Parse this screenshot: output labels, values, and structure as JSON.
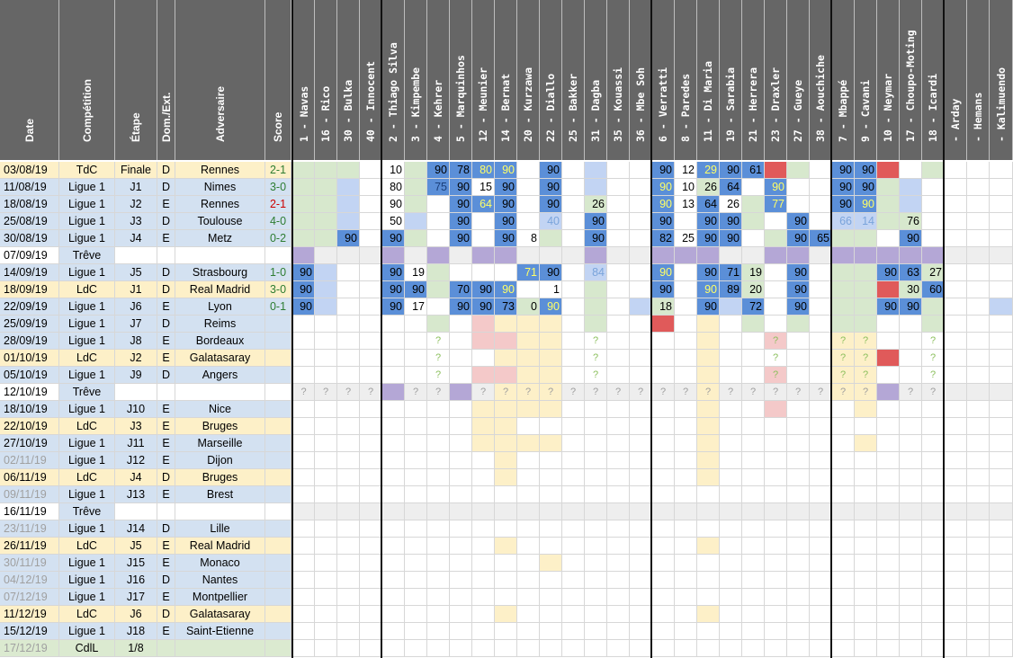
{
  "headers": {
    "info": [
      "Date",
      "Compétition",
      "Étape",
      "Dom./Ext.",
      "Adversaire",
      "Score"
    ],
    "players": [
      "1 - Navas",
      "16 - Rico",
      "30 - Bulka",
      "40 - Innocent",
      "2 - Thiago Silva",
      "3 - Kimpembe",
      "4 - Kehrer",
      "5 - Marquinhos",
      "12 - Meunier",
      "14 - Bernat",
      "20 - Kurzawa",
      "22 - Diallo",
      "25 - Bakker",
      "31 - Dagba",
      "35 - Kouassi",
      "36 - Mbe Soh",
      "6 - Verratti",
      "8 - Paredes",
      "11 - Di Maria",
      "19 - Sarabia",
      "21 - Herrera",
      "23 - Draxler",
      "27 - Gueye",
      "38 - Aouchiche",
      "7 - Mbappé",
      "9 - Cavani",
      "10 - Neymar",
      "17 - Choupo-Moting",
      "18 - Icardi",
      " - Arday",
      " - Hemans",
      " - Kalimuendo"
    ]
  },
  "matches": [
    {
      "date": "03/08/19",
      "comp": "TdC",
      "stage": "Finale",
      "venue": "D",
      "opponent": "Rennes",
      "score": "2-1"
    },
    {
      "date": "11/08/19",
      "comp": "Ligue 1",
      "stage": "J1",
      "venue": "D",
      "opponent": "Nimes",
      "score": "3-0"
    },
    {
      "date": "18/08/19",
      "comp": "Ligue 1",
      "stage": "J2",
      "venue": "E",
      "opponent": "Rennes",
      "score": "2-1"
    },
    {
      "date": "25/08/19",
      "comp": "Ligue 1",
      "stage": "J3",
      "venue": "D",
      "opponent": "Toulouse",
      "score": "4-0"
    },
    {
      "date": "30/08/19",
      "comp": "Ligue 1",
      "stage": "J4",
      "venue": "E",
      "opponent": "Metz",
      "score": "0-2"
    },
    {
      "date": "07/09/19",
      "comp": "Trêve",
      "stage": "",
      "venue": "",
      "opponent": "",
      "score": ""
    },
    {
      "date": "14/09/19",
      "comp": "Ligue 1",
      "stage": "J5",
      "venue": "D",
      "opponent": "Strasbourg",
      "score": "1-0"
    },
    {
      "date": "18/09/19",
      "comp": "LdC",
      "stage": "J1",
      "venue": "D",
      "opponent": "Real Madrid",
      "score": "3-0"
    },
    {
      "date": "22/09/19",
      "comp": "Ligue 1",
      "stage": "J6",
      "venue": "E",
      "opponent": "Lyon",
      "score": "0-1"
    },
    {
      "date": "25/09/19",
      "comp": "Ligue 1",
      "stage": "J7",
      "venue": "D",
      "opponent": "Reims",
      "score": ""
    },
    {
      "date": "28/09/19",
      "comp": "Ligue 1",
      "stage": "J8",
      "venue": "E",
      "opponent": "Bordeaux",
      "score": ""
    },
    {
      "date": "01/10/19",
      "comp": "LdC",
      "stage": "J2",
      "venue": "E",
      "opponent": "Galatasaray",
      "score": ""
    },
    {
      "date": "05/10/19",
      "comp": "Ligue 1",
      "stage": "J9",
      "venue": "D",
      "opponent": "Angers",
      "score": ""
    },
    {
      "date": "12/10/19",
      "comp": "Trêve",
      "stage": "",
      "venue": "",
      "opponent": "",
      "score": ""
    },
    {
      "date": "18/10/19",
      "comp": "Ligue 1",
      "stage": "J10",
      "venue": "E",
      "opponent": "Nice",
      "score": ""
    },
    {
      "date": "22/10/19",
      "comp": "LdC",
      "stage": "J3",
      "venue": "E",
      "opponent": "Bruges",
      "score": ""
    },
    {
      "date": "27/10/19",
      "comp": "Ligue 1",
      "stage": "J11",
      "venue": "E",
      "opponent": "Marseille",
      "score": ""
    },
    {
      "date": "02/11/19",
      "comp": "Ligue 1",
      "stage": "J12",
      "venue": "E",
      "opponent": "Dijon",
      "score": ""
    },
    {
      "date": "06/11/19",
      "comp": "LdC",
      "stage": "J4",
      "venue": "D",
      "opponent": "Bruges",
      "score": ""
    },
    {
      "date": "09/11/19",
      "comp": "Ligue 1",
      "stage": "J13",
      "venue": "E",
      "opponent": "Brest",
      "score": ""
    },
    {
      "date": "16/11/19",
      "comp": "Trêve",
      "stage": "",
      "venue": "",
      "opponent": "",
      "score": ""
    },
    {
      "date": "23/11/19",
      "comp": "Ligue 1",
      "stage": "J14",
      "venue": "D",
      "opponent": "Lille",
      "score": ""
    },
    {
      "date": "26/11/19",
      "comp": "LdC",
      "stage": "J5",
      "venue": "E",
      "opponent": "Real Madrid",
      "score": ""
    },
    {
      "date": "30/11/19",
      "comp": "Ligue 1",
      "stage": "J15",
      "venue": "E",
      "opponent": "Monaco",
      "score": ""
    },
    {
      "date": "04/12/19",
      "comp": "Ligue 1",
      "stage": "J16",
      "venue": "D",
      "opponent": "Nantes",
      "score": ""
    },
    {
      "date": "07/12/19",
      "comp": "Ligue 1",
      "stage": "J17",
      "venue": "E",
      "opponent": "Montpellier",
      "score": ""
    },
    {
      "date": "11/12/19",
      "comp": "LdC",
      "stage": "J6",
      "venue": "D",
      "opponent": "Galatasaray",
      "score": ""
    },
    {
      "date": "15/12/19",
      "comp": "Ligue 1",
      "stage": "J18",
      "venue": "E",
      "opponent": "Saint-Etienne",
      "score": ""
    },
    {
      "date": "17/12/19",
      "comp": "CdlL",
      "stage": "1/8",
      "venue": "",
      "opponent": "",
      "score": ""
    }
  ],
  "minutes": [
    {
      "row": 0,
      "cells": {
        "4": "10",
        "6": "90",
        "7": "78",
        "8": "80",
        "9": "90",
        "11": "90",
        "16": "90",
        "17": "12",
        "18": "29",
        "19": "90",
        "20": "61",
        "24": "90",
        "25": "90"
      }
    },
    {
      "row": 1,
      "cells": {
        "4": "80",
        "6": "75",
        "7": "90",
        "8": "15",
        "9": "90",
        "11": "90",
        "16": "90",
        "17": "10",
        "18": "26",
        "19": "64",
        "21": "90",
        "24": "90",
        "25": "90"
      }
    },
    {
      "row": 2,
      "cells": {
        "4": "90",
        "7": "90",
        "8": "64",
        "9": "90",
        "11": "90",
        "13": "26",
        "16": "90",
        "17": "13",
        "18": "64",
        "19": "26",
        "21": "77",
        "24": "90",
        "25": "90"
      }
    },
    {
      "row": 3,
      "cells": {
        "4": "50",
        "7": "90",
        "9": "90",
        "11": "40",
        "13": "90",
        "16": "90",
        "18": "90",
        "19": "90",
        "22": "90",
        "24": "66",
        "25": "14",
        "27": "76"
      }
    },
    {
      "row": 4,
      "cells": {
        "2": "90",
        "4": "90",
        "7": "90",
        "9": "90",
        "10": "8",
        "13": "90",
        "16": "82",
        "17": "25",
        "18": "90",
        "19": "90",
        "22": "90",
        "23": "65",
        "27": "90"
      }
    },
    {
      "row": 6,
      "cells": {
        "0": "90",
        "4": "90",
        "5": "19",
        "10": "71",
        "11": "90",
        "13": "84",
        "16": "90",
        "18": "90",
        "19": "71",
        "20": "19",
        "22": "90",
        "26": "90",
        "27": "63",
        "28": "27"
      }
    },
    {
      "row": 7,
      "cells": {
        "0": "90",
        "4": "90",
        "5": "90",
        "7": "70",
        "8": "90",
        "9": "90",
        "11": "1",
        "16": "90",
        "18": "90",
        "19": "89",
        "20": "20",
        "22": "90",
        "27": "30",
        "28": "60"
      }
    },
    {
      "row": 8,
      "cells": {
        "0": "90",
        "4": "90",
        "5": "17",
        "7": "90",
        "8": "90",
        "9": "73",
        "10": "0",
        "11": "90",
        "16": "18",
        "18": "90",
        "20": "72",
        "22": "90",
        "26": "90",
        "27": "90"
      }
    }
  ],
  "colors": {
    "header_bg": "#666666",
    "ligue1_row": "#d3e1f1",
    "ldc_row": "#fdf0c8",
    "cdl_row": "#dbead0",
    "break_row": "#eeeeee",
    "starter_blue": "#5b8fd8",
    "sub_blue": "#c2d4f3",
    "bench_green": "#d7e8cd",
    "injury_pink": "#f4c9c9",
    "doubtful_yellow": "#fdf0c8",
    "suspended_red": "#e05a5a",
    "intl_purple": "#b4a7d6"
  }
}
